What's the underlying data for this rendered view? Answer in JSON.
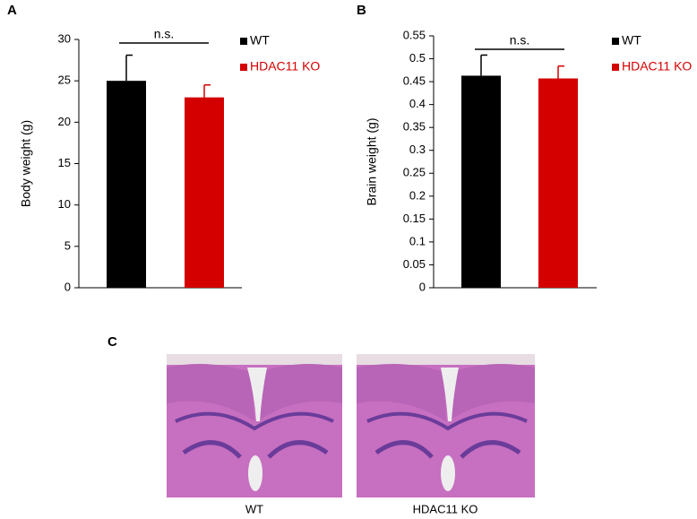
{
  "panels": [
    "A",
    "B",
    "C"
  ],
  "chart_data": [
    {
      "type": "bar",
      "ylabel": "Body weight (g)",
      "annotation": "n.s.",
      "ylim": [
        0,
        30
      ],
      "yticks": [
        0,
        5,
        10,
        15,
        20,
        25,
        30
      ],
      "series": [
        {
          "name": "WT",
          "color": "#000000",
          "values": [
            25
          ],
          "errors": [
            3.1
          ]
        },
        {
          "name": "HDAC11 KO",
          "color": "#d40000",
          "values": [
            23
          ],
          "errors": [
            1.5
          ]
        }
      ]
    },
    {
      "type": "bar",
      "ylabel": "Brain weight (g)",
      "annotation": "n.s.",
      "ylim": [
        0,
        0.55
      ],
      "yticks": [
        0,
        0.05,
        0.1,
        0.15,
        0.2,
        0.25,
        0.3,
        0.35,
        0.4,
        0.45,
        0.5,
        0.55
      ],
      "series": [
        {
          "name": "WT",
          "color": "#000000",
          "values": [
            0.463
          ],
          "errors": [
            0.045
          ]
        },
        {
          "name": "HDAC11 KO",
          "color": "#d40000",
          "values": [
            0.457
          ],
          "errors": [
            0.027
          ]
        }
      ]
    }
  ],
  "images": [
    {
      "caption": "WT"
    },
    {
      "caption": "HDAC11 KO"
    }
  ]
}
